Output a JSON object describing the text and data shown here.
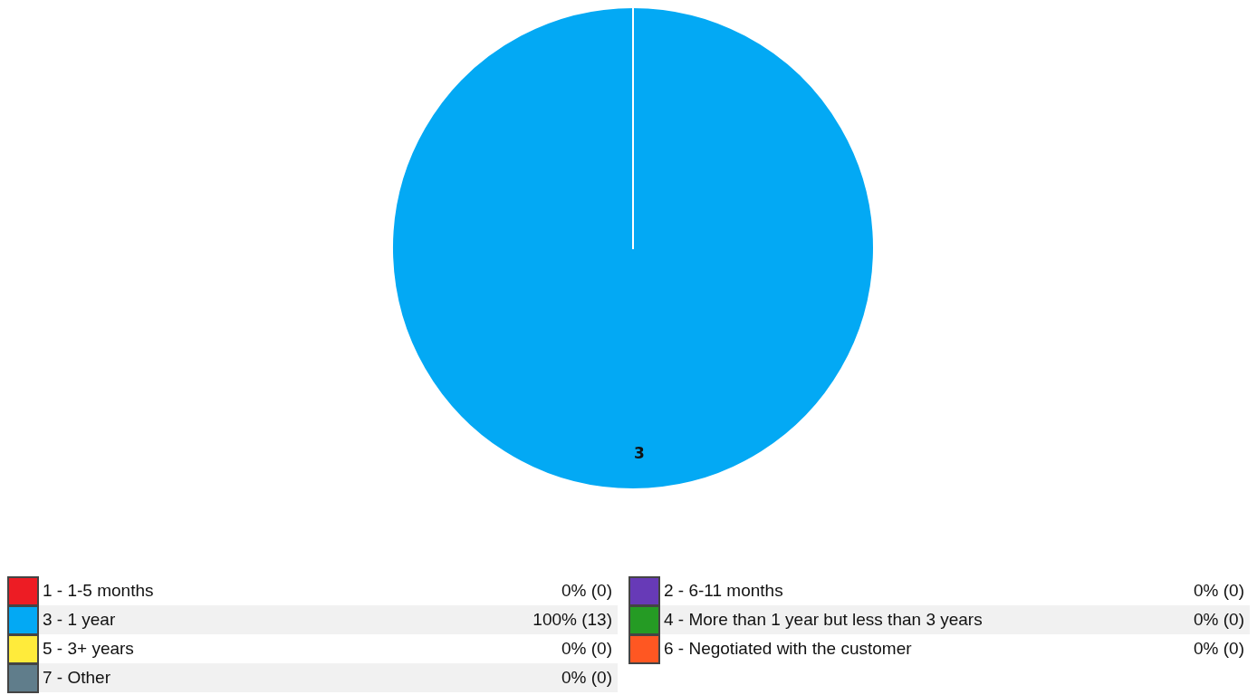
{
  "chart_data": {
    "type": "pie",
    "categories": [
      "1 - 1-5 months",
      "2 - 6-11 months",
      "3 - 1 year",
      "4 - More than 1 year but less than 3 years",
      "5 - 3+ years",
      "6 - Negotiated with the customer",
      "7 - Other"
    ],
    "values": [
      0,
      0,
      13,
      0,
      0,
      0,
      0
    ],
    "colors": [
      "#ed1c24",
      "#673ab7",
      "#03a9f4",
      "#259b24",
      "#ffeb3b",
      "#ff5722",
      "#607d8b"
    ],
    "value_labels": [
      "0% (0)",
      "0% (0)",
      "100% (13)",
      "0% (0)",
      "0% (0)",
      "0% (0)",
      "0% (0)"
    ],
    "annotations": [
      "3"
    ],
    "legend": "bottom"
  }
}
